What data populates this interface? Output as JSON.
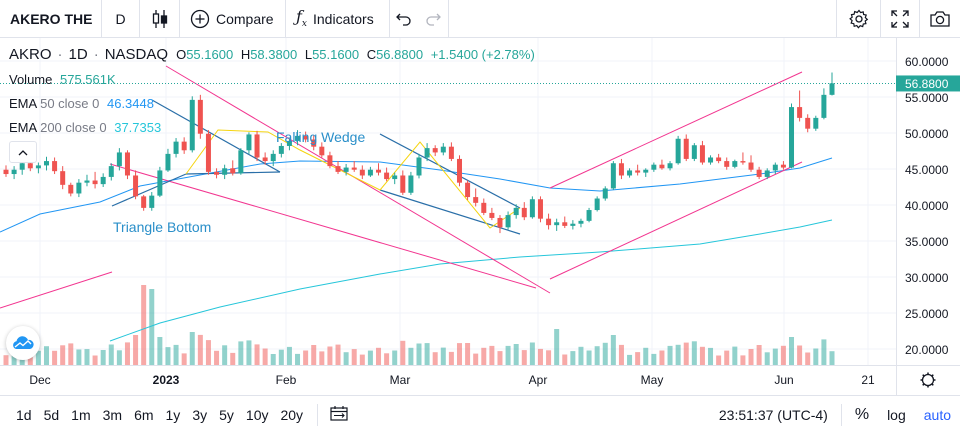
{
  "toolbar": {
    "symbol": "AKERO THE",
    "interval": "D",
    "compare_label": "Compare",
    "indicators_label": "Indicators"
  },
  "legend": {
    "symbol": "AKRO",
    "interval": "1D",
    "exchange": "NASDAQ",
    "open_label": "O",
    "open": "55.1600",
    "high_label": "H",
    "high": "58.3800",
    "low_label": "L",
    "low": "55.1600",
    "close_label": "C",
    "close": "56.8800",
    "change": "+1.5400 (+2.78%)"
  },
  "studies": [
    {
      "name": "Volume",
      "params": "",
      "value": "575.561K",
      "color": "#26a69a"
    },
    {
      "name": "EMA",
      "params": "50 close 0",
      "value": "46.3448",
      "color": "#2196f3"
    },
    {
      "name": "EMA",
      "params": "200 close 0",
      "value": "37.7353",
      "color": "#26c6da"
    }
  ],
  "drawings": {
    "falling_wedge": "Falling Wedge",
    "triangle_bottom": "Triangle Bottom"
  },
  "price_axis": {
    "ticks": [
      "60.0000",
      "55.0000",
      "50.0000",
      "45.0000",
      "40.0000",
      "35.0000",
      "30.0000",
      "25.0000",
      "20.0000"
    ],
    "current_price": "56.8800"
  },
  "time_axis": {
    "ticks": [
      "Dec",
      "2023",
      "Feb",
      "Mar",
      "Apr",
      "May",
      "Jun",
      "21"
    ]
  },
  "bottombar": {
    "ranges": [
      "1d",
      "5d",
      "1m",
      "3m",
      "6m",
      "1y",
      "3y",
      "5y",
      "10y",
      "20y"
    ],
    "time": "23:51:37 (UTC-4)",
    "percent": "%",
    "log": "log",
    "auto": "auto"
  },
  "colors": {
    "up": "#26a69a",
    "down": "#ef5350",
    "ema50": "#2196f3",
    "ema200": "#26c6da",
    "channel": "#f23690",
    "wedge": "#2a6fa8",
    "pattern": "#f5d40f"
  },
  "chart_data": {
    "type": "candlestick",
    "y_range": [
      17.5,
      62.5
    ],
    "candles_approx": [
      [
        44.9,
        45.5,
        43.9,
        44.3
      ],
      [
        44.3,
        45.4,
        43.6,
        44.9
      ],
      [
        44.9,
        46.3,
        44.2,
        45.8
      ],
      [
        45.8,
        46.3,
        44.7,
        45.1
      ],
      [
        45.1,
        45.9,
        44.4,
        45.5
      ],
      [
        45.5,
        46.7,
        44.8,
        46.1
      ],
      [
        46.1,
        46.6,
        44.3,
        44.7
      ],
      [
        44.7,
        45.4,
        42.2,
        42.8
      ],
      [
        42.8,
        43.1,
        41.2,
        41.6
      ],
      [
        41.6,
        43.6,
        41.1,
        43.1
      ],
      [
        43.1,
        44.2,
        42.6,
        43.4
      ],
      [
        43.4,
        44.6,
        42.3,
        42.9
      ],
      [
        42.9,
        44.4,
        42.5,
        43.9
      ],
      [
        43.9,
        45.8,
        43.4,
        45.4
      ],
      [
        45.4,
        47.9,
        44.8,
        47.3
      ],
      [
        47.3,
        47.6,
        43.6,
        44.1
      ],
      [
        44.1,
        44.8,
        40.8,
        41.2
      ],
      [
        41.2,
        41.4,
        39.2,
        39.6
      ],
      [
        39.6,
        41.8,
        39.2,
        41.3
      ],
      [
        41.3,
        45.3,
        41.1,
        44.8
      ],
      [
        44.8,
        47.8,
        44.6,
        47.1
      ],
      [
        47.1,
        49.3,
        46.6,
        48.8
      ],
      [
        48.8,
        49.4,
        47.1,
        47.6
      ],
      [
        47.6,
        55.1,
        47.3,
        54.6
      ],
      [
        54.6,
        55.3,
        49.2,
        49.9
      ],
      [
        49.9,
        50.4,
        44.2,
        44.6
      ],
      [
        44.6,
        45.1,
        43.7,
        44.2
      ],
      [
        44.2,
        45.6,
        43.6,
        45.1
      ],
      [
        45.1,
        46.2,
        44.1,
        44.4
      ],
      [
        44.4,
        47.9,
        44.2,
        47.6
      ],
      [
        47.6,
        50.1,
        47.1,
        49.8
      ],
      [
        49.8,
        50.3,
        46.1,
        46.6
      ],
      [
        46.6,
        47.3,
        45.6,
        46.1
      ],
      [
        46.1,
        47.6,
        45.4,
        47.1
      ],
      [
        47.1,
        48.6,
        46.6,
        48.2
      ],
      [
        48.2,
        49.2,
        47.6,
        48.9
      ],
      [
        48.9,
        50.4,
        48.3,
        49.6
      ],
      [
        49.6,
        50.2,
        48.7,
        49.1
      ],
      [
        49.1,
        49.7,
        47.6,
        48.1
      ],
      [
        48.1,
        48.7,
        46.6,
        46.9
      ],
      [
        46.9,
        47.4,
        45.1,
        45.4
      ],
      [
        45.4,
        46.1,
        44.3,
        44.6
      ],
      [
        44.6,
        45.7,
        44.1,
        45.2
      ],
      [
        45.2,
        46.1,
        44.6,
        44.9
      ],
      [
        44.9,
        45.5,
        43.6,
        44.1
      ],
      [
        44.1,
        45.3,
        43.9,
        44.9
      ],
      [
        44.9,
        45.8,
        44.1,
        44.5
      ],
      [
        44.5,
        45.2,
        43.3,
        43.6
      ],
      [
        43.6,
        44.5,
        42.9,
        44.1
      ],
      [
        44.1,
        44.8,
        41.4,
        41.7
      ],
      [
        41.7,
        44.6,
        41.4,
        44.1
      ],
      [
        44.1,
        47.1,
        43.7,
        46.6
      ],
      [
        46.6,
        48.6,
        46.1,
        47.9
      ],
      [
        47.9,
        48.3,
        46.8,
        47.3
      ],
      [
        47.3,
        48.6,
        46.9,
        48.1
      ],
      [
        48.1,
        48.7,
        46.1,
        46.4
      ],
      [
        46.4,
        46.9,
        42.6,
        43.1
      ],
      [
        43.1,
        43.4,
        40.7,
        41.1
      ],
      [
        41.1,
        42.3,
        39.8,
        40.3
      ],
      [
        40.3,
        40.9,
        38.6,
        38.9
      ],
      [
        38.9,
        39.6,
        37.9,
        38.2
      ],
      [
        38.2,
        38.6,
        36.1,
        36.9
      ],
      [
        36.9,
        39.1,
        36.6,
        38.6
      ],
      [
        38.6,
        40.1,
        38.1,
        39.6
      ],
      [
        39.6,
        40.4,
        37.9,
        38.3
      ],
      [
        38.3,
        41.2,
        38.1,
        40.8
      ],
      [
        40.8,
        41.2,
        37.6,
        38.1
      ],
      [
        38.1,
        38.8,
        36.6,
        37.2
      ],
      [
        37.2,
        38.1,
        36.4,
        37.6
      ],
      [
        37.6,
        38.4,
        36.8,
        37.1
      ],
      [
        37.1,
        37.9,
        36.6,
        37.4
      ],
      [
        37.4,
        38.1,
        36.9,
        37.8
      ],
      [
        37.8,
        39.6,
        37.6,
        39.3
      ],
      [
        39.3,
        41.2,
        39.1,
        40.9
      ],
      [
        40.9,
        42.6,
        40.6,
        42.3
      ],
      [
        42.3,
        46.1,
        42.1,
        45.8
      ],
      [
        45.8,
        46.4,
        43.6,
        44.1
      ],
      [
        44.1,
        45.1,
        43.8,
        44.8
      ],
      [
        44.8,
        45.6,
        44.1,
        44.5
      ],
      [
        44.5,
        45.1,
        43.9,
        44.9
      ],
      [
        44.9,
        45.9,
        44.6,
        45.6
      ],
      [
        45.6,
        46.3,
        44.9,
        45.1
      ],
      [
        45.1,
        46.1,
        44.8,
        45.8
      ],
      [
        45.8,
        49.6,
        45.6,
        49.2
      ],
      [
        49.2,
        49.8,
        46.1,
        46.4
      ],
      [
        46.4,
        48.6,
        46.1,
        48.3
      ],
      [
        48.3,
        48.9,
        45.6,
        45.9
      ],
      [
        45.9,
        46.9,
        45.6,
        46.6
      ],
      [
        46.6,
        47.1,
        45.8,
        46.1
      ],
      [
        46.1,
        46.6,
        44.9,
        45.3
      ],
      [
        45.3,
        46.3,
        45.1,
        46.1
      ],
      [
        46.1,
        47.3,
        45.6,
        45.9
      ],
      [
        45.9,
        46.9,
        44.6,
        44.9
      ],
      [
        44.9,
        45.3,
        43.6,
        43.9
      ],
      [
        43.9,
        45.1,
        43.6,
        44.8
      ],
      [
        44.8,
        45.9,
        44.3,
        45.6
      ],
      [
        45.6,
        46.1,
        44.9,
        45.2
      ],
      [
        45.2,
        54.1,
        45.1,
        53.6
      ],
      [
        53.6,
        55.9,
        51.6,
        52.1
      ],
      [
        52.1,
        52.6,
        50.1,
        50.6
      ],
      [
        50.6,
        52.4,
        50.3,
        52.1
      ],
      [
        52.1,
        56.2,
        51.9,
        55.3
      ],
      [
        55.3,
        58.4,
        55.2,
        56.9
      ]
    ]
  }
}
